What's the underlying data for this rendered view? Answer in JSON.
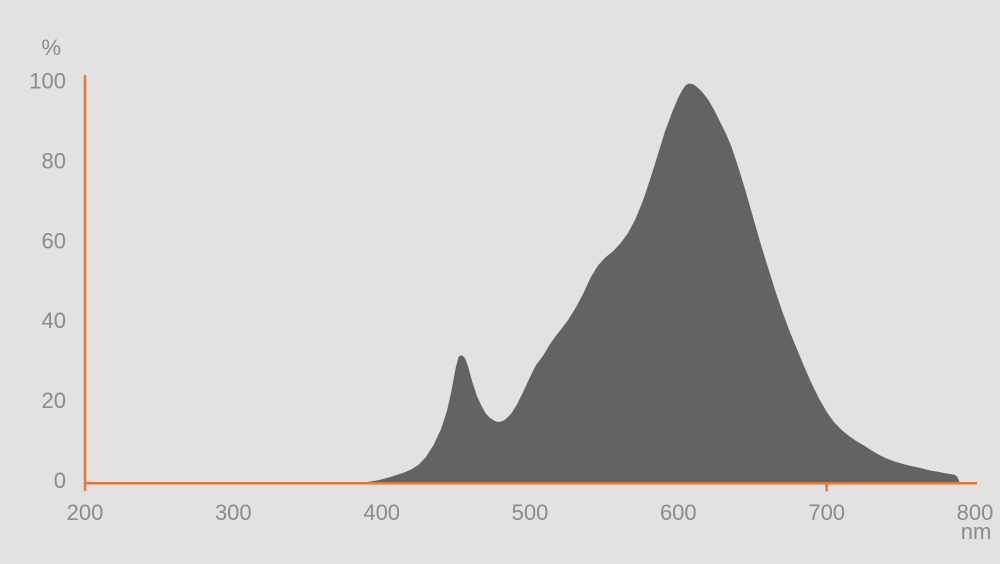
{
  "chart_data": {
    "type": "area",
    "xlabel": "nm",
    "ylabel": "%",
    "xlim": [
      200,
      800
    ],
    "ylim": [
      0,
      100
    ],
    "x_ticks": [
      200,
      300,
      400,
      500,
      600,
      700,
      800
    ],
    "x_tick_marks": [
      700
    ],
    "y_ticks": [
      0,
      20,
      40,
      60,
      80,
      100
    ],
    "grid": false,
    "legend": "none",
    "colors": {
      "background": "#e3e2e0",
      "area": "#636363",
      "axis": "#e07a3c",
      "label": "#8b8b8b"
    },
    "series": [
      {
        "points": [
          [
            200,
            0
          ],
          [
            240,
            0
          ],
          [
            280,
            0
          ],
          [
            320,
            0
          ],
          [
            360,
            0
          ],
          [
            385,
            0.1
          ],
          [
            390,
            0.25
          ],
          [
            395,
            0.5
          ],
          [
            400,
            0.9
          ],
          [
            405,
            1.4
          ],
          [
            410,
            2
          ],
          [
            415,
            2.6
          ],
          [
            420,
            3.4
          ],
          [
            425,
            4.6
          ],
          [
            430,
            6.6
          ],
          [
            435,
            9.5
          ],
          [
            440,
            13.5
          ],
          [
            444,
            18
          ],
          [
            447,
            23
          ],
          [
            450,
            29
          ],
          [
            452,
            31.7
          ],
          [
            454,
            32
          ],
          [
            456,
            31.4
          ],
          [
            458,
            29.5
          ],
          [
            461,
            25.5
          ],
          [
            464,
            22
          ],
          [
            467,
            19.5
          ],
          [
            470,
            17.5
          ],
          [
            473,
            16.3
          ],
          [
            477,
            15.4
          ],
          [
            480,
            15.3
          ],
          [
            483,
            15.8
          ],
          [
            487,
            17.2
          ],
          [
            491,
            19.5
          ],
          [
            495,
            22.5
          ],
          [
            500,
            26.5
          ],
          [
            504,
            29.5
          ],
          [
            509,
            32
          ],
          [
            513,
            34.5
          ],
          [
            517,
            36.6
          ],
          [
            521,
            38.5
          ],
          [
            526,
            41
          ],
          [
            531,
            44
          ],
          [
            536,
            47.5
          ],
          [
            541,
            51.5
          ],
          [
            546,
            54.5
          ],
          [
            551,
            56.5
          ],
          [
            556,
            58
          ],
          [
            561,
            60
          ],
          [
            566,
            62.5
          ],
          [
            571,
            66
          ],
          [
            576,
            70.5
          ],
          [
            581,
            76
          ],
          [
            586,
            82
          ],
          [
            591,
            88
          ],
          [
            596,
            93
          ],
          [
            600,
            96.5
          ],
          [
            603,
            98.6
          ],
          [
            605,
            99.6
          ],
          [
            607,
            100
          ],
          [
            610,
            99.8
          ],
          [
            613,
            99
          ],
          [
            616,
            97.9
          ],
          [
            620,
            96
          ],
          [
            624,
            93.5
          ],
          [
            628,
            90.5
          ],
          [
            632,
            87.5
          ],
          [
            636,
            84
          ],
          [
            640,
            79.5
          ],
          [
            645,
            73.5
          ],
          [
            650,
            67
          ],
          [
            655,
            60.5
          ],
          [
            660,
            54.5
          ],
          [
            665,
            48.5
          ],
          [
            670,
            43
          ],
          [
            675,
            38
          ],
          [
            680,
            33.5
          ],
          [
            685,
            29
          ],
          [
            690,
            24.8
          ],
          [
            695,
            21
          ],
          [
            700,
            17.8
          ],
          [
            705,
            15.2
          ],
          [
            710,
            13.3
          ],
          [
            715,
            11.8
          ],
          [
            720,
            10.5
          ],
          [
            725,
            9.4
          ],
          [
            730,
            8.2
          ],
          [
            735,
            7.1
          ],
          [
            740,
            6.2
          ],
          [
            745,
            5.5
          ],
          [
            750,
            4.9
          ],
          [
            755,
            4.4
          ],
          [
            760,
            4
          ],
          [
            765,
            3.6
          ],
          [
            770,
            3.1
          ],
          [
            775,
            2.8
          ],
          [
            779,
            2.5
          ],
          [
            782,
            2.3
          ],
          [
            786,
            2.1
          ],
          [
            788,
            1.6
          ],
          [
            789.5,
            0.3
          ],
          [
            790,
            0
          ]
        ]
      }
    ]
  }
}
